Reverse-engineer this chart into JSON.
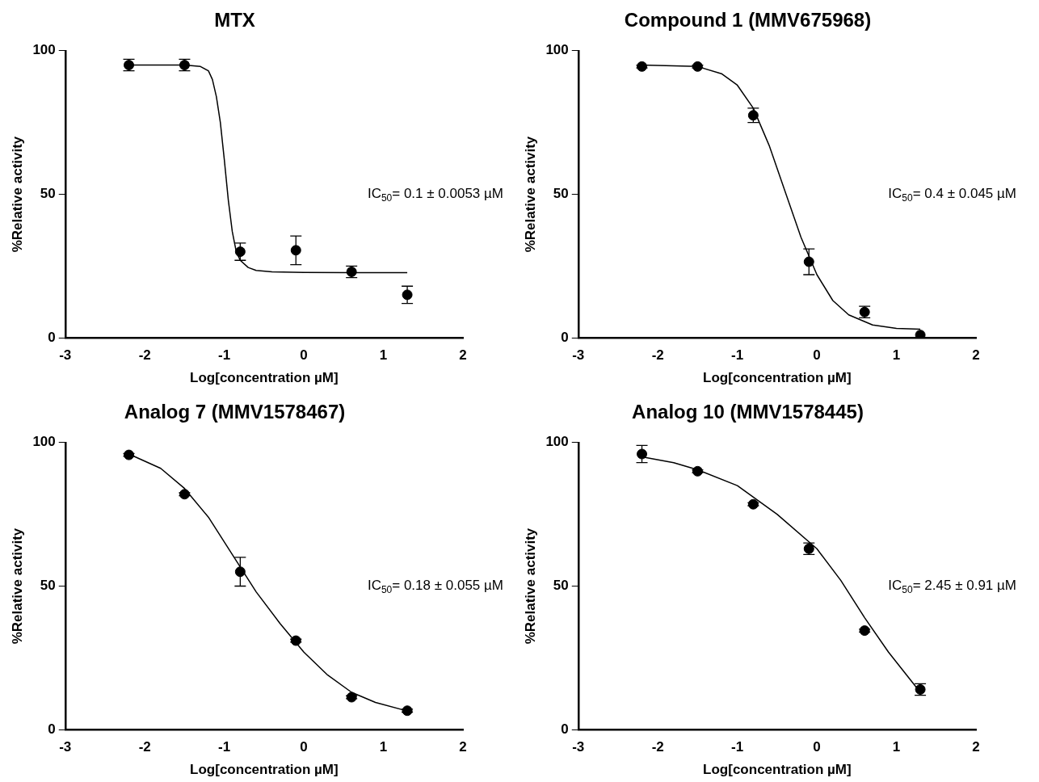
{
  "chart_data": [
    {
      "type": "scatter",
      "title": "MTX",
      "xlabel": "Log[concentration µM]",
      "ylabel": "%Relative activity",
      "xlim": [
        -3,
        2
      ],
      "xticks": [
        -3,
        -2,
        -1,
        0,
        1,
        2
      ],
      "ylim": [
        0,
        100
      ],
      "yticks": [
        0,
        50,
        100
      ],
      "grid": false,
      "legend": false,
      "annotations": [
        "IC$_{50}$= 0.1 ± 0.0053 µM"
      ],
      "series": [
        {
          "type": "scatter",
          "color": "#000000",
          "marker": "circle",
          "x": [
            -2.2,
            -1.5,
            -0.8,
            -0.1,
            0.6,
            1.3
          ],
          "values": [
            95,
            95,
            30,
            30.5,
            23,
            15
          ],
          "errors": [
            2,
            2,
            3,
            5,
            2,
            3
          ]
        },
        {
          "type": "line",
          "color": "#000000",
          "marker": "none",
          "x": [
            -2.2,
            -1.5,
            -1.3,
            -1.2,
            -1.15,
            -1.1,
            -1.05,
            -1.0,
            -0.95,
            -0.9,
            -0.85,
            -0.8,
            -0.7,
            -0.6,
            -0.4,
            0,
            0.6,
            1.3
          ],
          "values": [
            95,
            95,
            94.5,
            93,
            90,
            84,
            75,
            62,
            48,
            37,
            30,
            27,
            24.5,
            23.5,
            23,
            22.8,
            22.7,
            22.7
          ]
        }
      ]
    },
    {
      "type": "scatter",
      "title": "Compound 1 (MMV675968)",
      "xlabel": "Log[concentration µM]",
      "ylabel": "%Relative activity",
      "xlim": [
        -3,
        2
      ],
      "xticks": [
        -3,
        -2,
        -1,
        0,
        1,
        2
      ],
      "ylim": [
        0,
        100
      ],
      "yticks": [
        0,
        50,
        100
      ],
      "grid": false,
      "legend": false,
      "annotations": [
        "IC$_{50}$= 0.4 ± 0.045 µM"
      ],
      "series": [
        {
          "type": "scatter",
          "color": "#000000",
          "marker": "circle",
          "x": [
            -2.2,
            -1.5,
            -0.8,
            -0.1,
            0.6,
            1.3
          ],
          "values": [
            94.5,
            94.5,
            77.5,
            26.5,
            9,
            1
          ],
          "errors": [
            0.5,
            0.5,
            2.5,
            4.5,
            2,
            null
          ]
        },
        {
          "type": "line",
          "color": "#000000",
          "marker": "none",
          "x": [
            -2.2,
            -1.5,
            -1.2,
            -1.0,
            -0.8,
            -0.6,
            -0.4,
            -0.2,
            0,
            0.2,
            0.4,
            0.7,
            1.0,
            1.3
          ],
          "values": [
            95,
            94.5,
            92,
            88,
            80,
            67,
            51,
            35,
            22,
            13,
            8,
            4.5,
            3.3,
            3
          ]
        }
      ]
    },
    {
      "type": "scatter",
      "title": "Analog 7 (MMV1578467)",
      "xlabel": "Log[concentration µM]",
      "ylabel": "%Relative activity",
      "xlim": [
        -3,
        2
      ],
      "xticks": [
        -3,
        -2,
        -1,
        0,
        1,
        2
      ],
      "ylim": [
        0,
        100
      ],
      "yticks": [
        0,
        50,
        100
      ],
      "grid": false,
      "legend": false,
      "annotations": [
        "IC$_{50}$= 0.18 ± 0.055 µM"
      ],
      "series": [
        {
          "type": "scatter",
          "color": "#000000",
          "marker": "circle",
          "x": [
            -2.2,
            -1.5,
            -0.8,
            -0.1,
            0.6,
            1.3
          ],
          "values": [
            95.7,
            82,
            55,
            31,
            11.3,
            6.6
          ],
          "errors": [
            0.5,
            0.5,
            5,
            0.5,
            0.5,
            0.5
          ]
        },
        {
          "type": "line",
          "color": "#000000",
          "marker": "none",
          "x": [
            -2.2,
            -1.8,
            -1.5,
            -1.2,
            -0.9,
            -0.6,
            -0.3,
            0,
            0.3,
            0.6,
            0.9,
            1.3
          ],
          "values": [
            96,
            91,
            84,
            74,
            61,
            48,
            37,
            27,
            19,
            13,
            9.5,
            6.5
          ]
        }
      ]
    },
    {
      "type": "scatter",
      "title": "Analog 10 (MMV1578445)",
      "xlabel": "Log[concentration µM]",
      "ylabel": "%Relative activity",
      "xlim": [
        -3,
        2
      ],
      "xticks": [
        -3,
        -2,
        -1,
        0,
        1,
        2
      ],
      "ylim": [
        0,
        100
      ],
      "yticks": [
        0,
        50,
        100
      ],
      "grid": false,
      "legend": false,
      "annotations": [
        "IC$_{50}$= 2.45 ± 0.91 µM"
      ],
      "series": [
        {
          "type": "scatter",
          "color": "#000000",
          "marker": "circle",
          "x": [
            -2.2,
            -1.5,
            -0.8,
            -0.1,
            0.6,
            1.3
          ],
          "values": [
            96,
            90,
            78.5,
            63,
            34.5,
            14
          ],
          "errors": [
            3,
            0.5,
            0.5,
            2,
            0.5,
            2
          ]
        },
        {
          "type": "line",
          "color": "#000000",
          "marker": "none",
          "x": [
            -2.2,
            -1.8,
            -1.5,
            -1.0,
            -0.5,
            0,
            0.3,
            0.6,
            0.9,
            1.3
          ],
          "values": [
            95,
            93,
            90.5,
            85,
            75,
            63,
            52,
            39,
            27,
            13
          ]
        }
      ]
    }
  ]
}
